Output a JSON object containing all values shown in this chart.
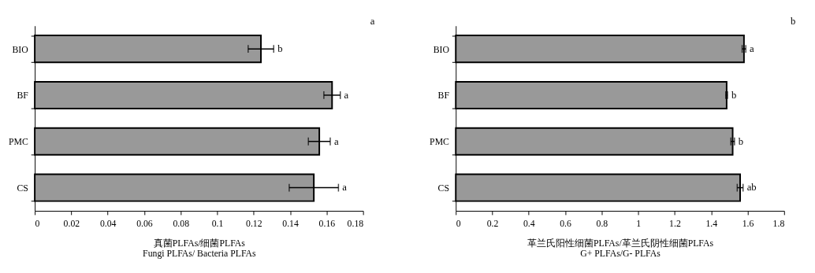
{
  "chart_data": [
    {
      "type": "bar",
      "orientation": "horizontal",
      "categories": [
        "BIO",
        "BF",
        "PMC",
        "CS"
      ],
      "series": [
        {
          "color": "#999999",
          "values": [
            0.124,
            0.163,
            0.156,
            0.153
          ],
          "errors": [
            0.007,
            0.0045,
            0.006,
            0.0135
          ]
        }
      ],
      "xlabel": "真菌PLFAs/细菌PLFAs\nFungi PLFAs/ Bacteria PLFAs",
      "xlim": [
        0,
        0.18
      ],
      "xticks": [
        0,
        0.02,
        0.04,
        0.06,
        0.08,
        0.1,
        0.12,
        0.14,
        0.16,
        0.18
      ],
      "grid": false,
      "annotations": [
        "a",
        {
          "text": "b",
          "x": 0.131,
          "y": "BIO"
        },
        {
          "text": "a",
          "x": 0.1675,
          "y": "BF"
        },
        {
          "text": "a",
          "x": 0.162,
          "y": "PMC"
        },
        {
          "text": "a",
          "x": 0.1665,
          "y": "CS"
        }
      ]
    },
    {
      "type": "bar",
      "orientation": "horizontal",
      "categories": [
        "BIO",
        "BF",
        "PMC",
        "CS"
      ],
      "series": [
        {
          "color": "#999999",
          "values": [
            1.58,
            1.485,
            1.518,
            1.559
          ],
          "errors": [
            0.01,
            0.005,
            0.01,
            0.016
          ]
        }
      ],
      "xlabel": "革兰氏阳性细菌PLFAs/革兰氏阴性细菌PLFAs\nG+ PLFAs/G- PLFAs",
      "xlim": [
        0,
        1.8
      ],
      "xticks": [
        0,
        0.2,
        0.4,
        0.6,
        0.8,
        1,
        1.2,
        1.4,
        1.6,
        1.8
      ],
      "grid": false,
      "annotations": [
        "b",
        {
          "text": "a",
          "x": 1.59,
          "y": "BIO"
        },
        {
          "text": "b",
          "x": 1.49,
          "y": "BF"
        },
        {
          "text": "b",
          "x": 1.528,
          "y": "PMC"
        },
        {
          "text": "ab",
          "x": 1.575,
          "y": "CS"
        }
      ]
    }
  ]
}
